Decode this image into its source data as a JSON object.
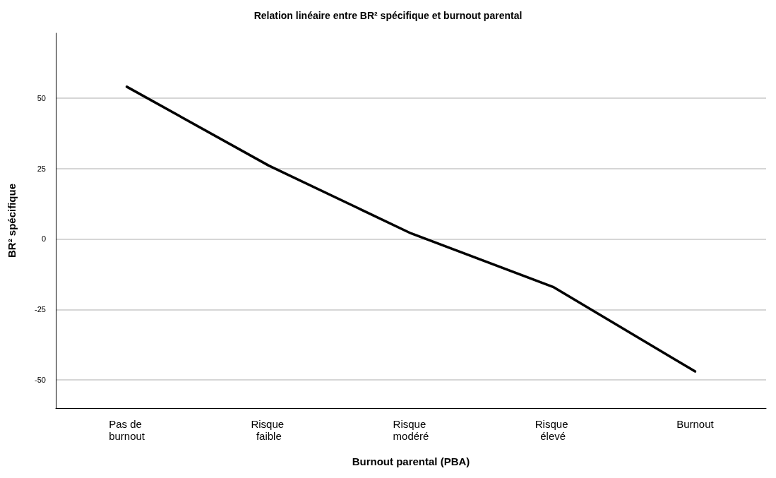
{
  "chart_data": {
    "type": "line",
    "title": "Relation linéaire entre BR² spécifique et burnout parental",
    "xlabel": "Burnout parental (PBA)",
    "ylabel": "BR² spécifique",
    "categories": [
      "Pas de burnout",
      "Risque faible",
      "Risque modéré",
      "Risque élevé",
      "Burnout"
    ],
    "series": [
      {
        "color": "#000000",
        "values": [
          54,
          26,
          2,
          -17,
          -47
        ]
      }
    ],
    "ylim": [
      -60,
      73
    ],
    "yticks": [
      -50,
      -25,
      0,
      25,
      50
    ],
    "grid": "y",
    "marker": "none",
    "line_style": "solid"
  }
}
